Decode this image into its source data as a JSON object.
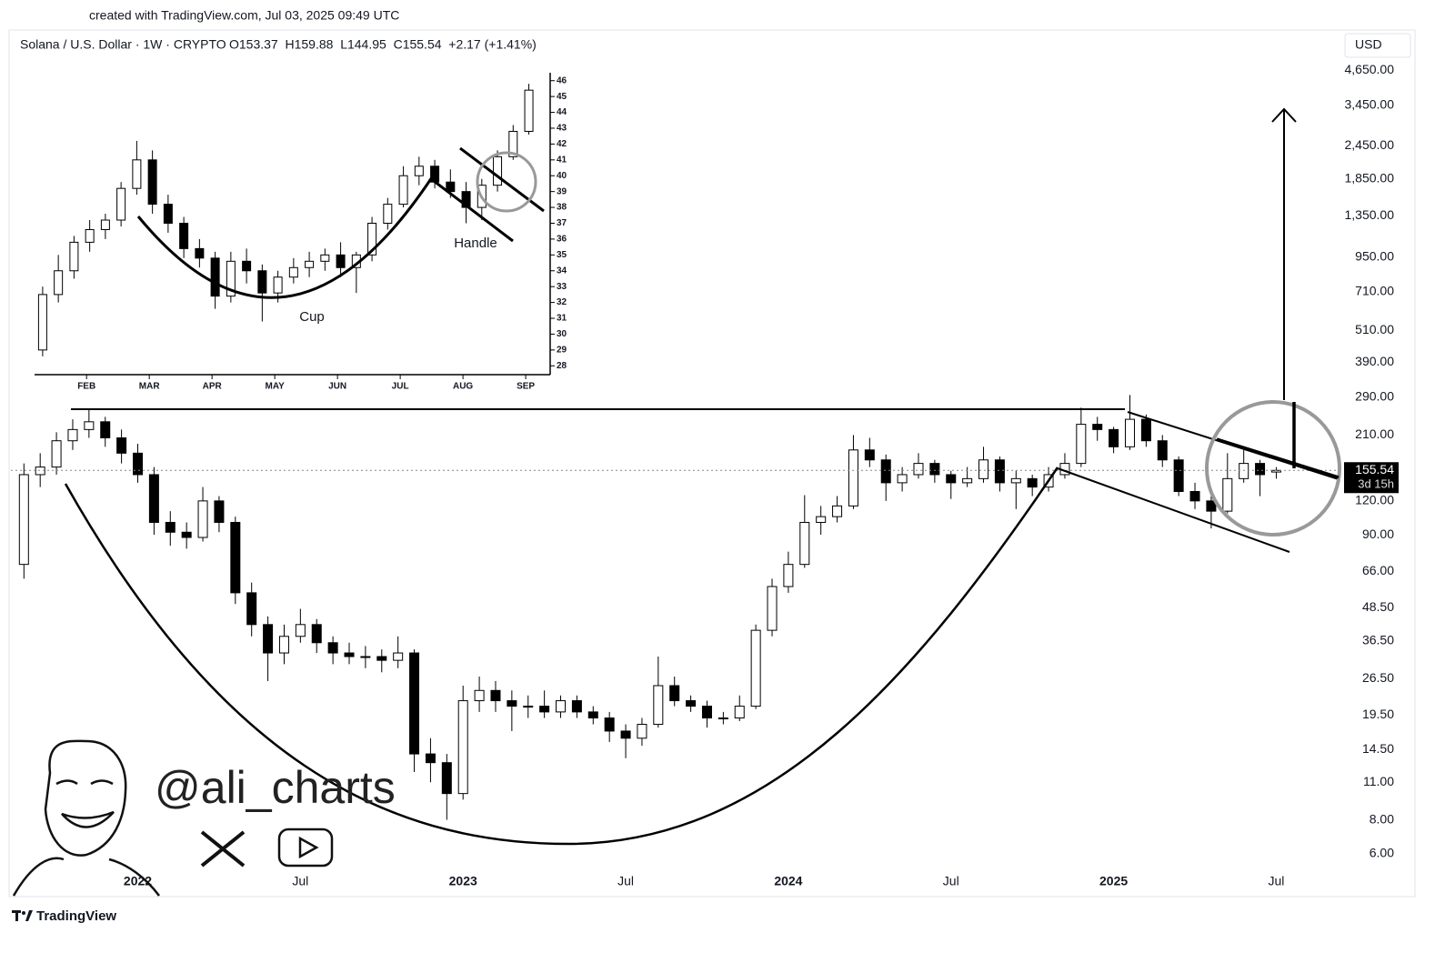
{
  "header": {
    "created": "created with TradingView.com, Jul 03, 2025 09:49 UTC",
    "symbol": "Solana / U.S. Dollar · 1W · CRYPTO",
    "ohlc": "O153.37  H159.88  L144.95  C155.54  +2.17 (+1.41%)",
    "currency": "USD"
  },
  "watermark": "@ali_charts",
  "footer": "TradingView",
  "chart_data": [
    {
      "type": "candlestick",
      "log_scale": true,
      "up_color": "#ffffff",
      "down_color": "#000000",
      "x": [
        2021.65,
        2021.7,
        2021.75,
        2021.8,
        2021.85,
        2021.9,
        2021.95,
        2022.0,
        2022.05,
        2022.1,
        2022.15,
        2022.2,
        2022.25,
        2022.3,
        2022.35,
        2022.4,
        2022.45,
        2022.5,
        2022.55,
        2022.6,
        2022.65,
        2022.7,
        2022.75,
        2022.8,
        2022.85,
        2022.9,
        2022.95,
        2023.0,
        2023.05,
        2023.1,
        2023.15,
        2023.2,
        2023.25,
        2023.3,
        2023.35,
        2023.4,
        2023.45,
        2023.5,
        2023.55,
        2023.6,
        2023.65,
        2023.7,
        2023.75,
        2023.8,
        2023.85,
        2023.9,
        2023.95,
        2024.0,
        2024.05,
        2024.1,
        2024.15,
        2024.2,
        2024.25,
        2024.3,
        2024.35,
        2024.4,
        2024.45,
        2024.5,
        2024.55,
        2024.6,
        2024.65,
        2024.7,
        2024.75,
        2024.8,
        2024.85,
        2024.9,
        2024.95,
        2025.0,
        2025.05,
        2025.1,
        2025.15,
        2025.2,
        2025.25,
        2025.3,
        2025.35,
        2025.4,
        2025.45,
        2025.5
      ],
      "open": [
        70,
        150,
        160,
        200,
        220,
        235,
        205,
        180,
        150,
        100,
        92,
        88,
        120,
        100,
        55,
        42,
        33,
        38,
        42,
        36,
        33,
        32,
        32,
        31,
        33,
        14,
        13,
        10,
        22,
        24,
        22,
        21,
        21,
        20,
        22,
        20,
        19,
        17,
        16,
        18,
        25,
        22,
        21,
        19,
        19,
        21,
        40,
        58,
        70,
        100,
        105,
        115,
        185,
        170,
        140,
        150,
        165,
        150,
        140,
        145,
        170,
        140,
        145,
        135,
        150,
        165,
        230,
        220,
        190,
        240,
        200,
        170,
        130,
        120,
        110,
        145,
        165,
        153.37
      ],
      "high": [
        165,
        180,
        215,
        240,
        260,
        245,
        220,
        195,
        160,
        110,
        100,
        135,
        125,
        105,
        60,
        45,
        42,
        48,
        44,
        38,
        36,
        35,
        34,
        38,
        34,
        16,
        14,
        25,
        27,
        26,
        24,
        23,
        24,
        23,
        23,
        21,
        20,
        18,
        19,
        32,
        27,
        23,
        22,
        20,
        23,
        42,
        62,
        78,
        126,
        115,
        125,
        210,
        205,
        178,
        160,
        180,
        170,
        155,
        160,
        190,
        175,
        155,
        150,
        160,
        180,
        265,
        245,
        225,
        295,
        250,
        210,
        175,
        140,
        125,
        180,
        185,
        170,
        159.88
      ],
      "low": [
        62,
        135,
        150,
        185,
        205,
        190,
        165,
        140,
        90,
        82,
        80,
        85,
        92,
        50,
        38,
        26,
        30,
        36,
        33,
        30,
        30,
        29,
        28,
        29,
        12,
        11,
        8,
        9.5,
        20,
        20,
        17,
        19,
        19,
        19,
        19,
        18,
        15.5,
        13.5,
        15,
        17.5,
        21,
        20,
        17.5,
        18,
        18.5,
        20.5,
        38,
        55,
        68,
        90,
        100,
        112,
        160,
        120,
        130,
        145,
        140,
        122,
        135,
        140,
        130,
        112,
        125,
        130,
        145,
        160,
        200,
        180,
        185,
        190,
        160,
        125,
        112,
        95,
        108,
        140,
        125,
        144.95
      ],
      "close": [
        150,
        160,
        200,
        220,
        235,
        205,
        180,
        150,
        100,
        92,
        88,
        120,
        100,
        55,
        42,
        33,
        38,
        42,
        36,
        33,
        32,
        32,
        31,
        33,
        14,
        13,
        10,
        22,
        24,
        22,
        21,
        21,
        20,
        22,
        20,
        19,
        17,
        16,
        18,
        25,
        22,
        21,
        19,
        19,
        21,
        40,
        58,
        70,
        100,
        105,
        115,
        185,
        170,
        140,
        150,
        165,
        150,
        140,
        145,
        170,
        140,
        145,
        135,
        150,
        165,
        230,
        220,
        190,
        240,
        200,
        170,
        130,
        120,
        110,
        145,
        165,
        150,
        155.54
      ],
      "xlim": [
        2021.61,
        2025.7
      ],
      "ylim": [
        4.2,
        6200
      ],
      "xticks": [
        {
          "value": 2022,
          "label": "2022"
        },
        {
          "value": 2022.5,
          "label": "Jul"
        },
        {
          "value": 2023,
          "label": "2023"
        },
        {
          "value": 2023.5,
          "label": "Jul"
        },
        {
          "value": 2024,
          "label": "2024"
        },
        {
          "value": 2024.5,
          "label": "Jul"
        },
        {
          "value": 2025,
          "label": "2025"
        },
        {
          "value": 2025.5,
          "label": "Jul"
        }
      ],
      "yticks": [
        {
          "value": 4650,
          "label": "4,650.00"
        },
        {
          "value": 3450,
          "label": "3,450.00"
        },
        {
          "value": 2450,
          "label": "2,450.00"
        },
        {
          "value": 1850,
          "label": "1,850.00"
        },
        {
          "value": 1350,
          "label": "1,350.00"
        },
        {
          "value": 950,
          "label": "950.00"
        },
        {
          "value": 710,
          "label": "710.00"
        },
        {
          "value": 510,
          "label": "510.00"
        },
        {
          "value": 390,
          "label": "390.00"
        },
        {
          "value": 290,
          "label": "290.00"
        },
        {
          "value": 210,
          "label": "210.00"
        },
        {
          "value": 120,
          "label": "120.00"
        },
        {
          "value": 90,
          "label": "90.00"
        },
        {
          "value": 66,
          "label": "66.00"
        },
        {
          "value": 48.5,
          "label": "48.50"
        },
        {
          "value": 36.5,
          "label": "36.50"
        },
        {
          "value": 26.5,
          "label": "26.50"
        },
        {
          "value": 19.5,
          "label": "19.50"
        },
        {
          "value": 14.5,
          "label": "14.50"
        },
        {
          "value": 11,
          "label": "11.00"
        },
        {
          "value": 8,
          "label": "8.00"
        },
        {
          "value": 6,
          "label": "6.00"
        }
      ],
      "last_price": 155.54,
      "countdown": "3d 15h"
    },
    {
      "type": "candlestick",
      "log_scale": false,
      "up_color": "#ffffff",
      "down_color": "#000000",
      "x": [
        1.3,
        1.55,
        1.8,
        2.05,
        2.3,
        2.55,
        2.8,
        3.05,
        3.3,
        3.55,
        3.8,
        4.05,
        4.3,
        4.55,
        4.8,
        5.05,
        5.3,
        5.55,
        5.8,
        6.05,
        6.3,
        6.55,
        6.8,
        7.05,
        7.3,
        7.55,
        7.8,
        8.05,
        8.3,
        8.55,
        8.8,
        9.05
      ],
      "open": [
        29,
        32.5,
        34,
        35.8,
        36.6,
        37.2,
        39.2,
        41,
        38.2,
        37,
        35.4,
        34.8,
        32.4,
        34.6,
        34,
        32.6,
        33.6,
        34.2,
        34.6,
        35,
        34.2,
        35,
        37,
        38.2,
        40,
        40.6,
        39.6,
        39,
        38,
        39.4,
        41.2,
        42.8
      ],
      "high": [
        33,
        35,
        36.2,
        37.2,
        37.6,
        39.6,
        42.2,
        41.6,
        38.8,
        37.4,
        36,
        35.2,
        35.2,
        35.4,
        34.4,
        34,
        34.8,
        35.2,
        35.4,
        35.8,
        35.2,
        37.4,
        38.6,
        40.6,
        41.2,
        41,
        40.4,
        39.6,
        39.8,
        41.6,
        43.2,
        45.8
      ],
      "low": [
        28.6,
        32,
        33.5,
        35.2,
        36,
        36.8,
        38.8,
        37.6,
        36.4,
        34.8,
        34.2,
        31.6,
        32,
        33.2,
        30.8,
        32,
        33.2,
        33.6,
        34,
        33.6,
        32.6,
        34.6,
        36.6,
        38,
        39.4,
        39.2,
        38.6,
        37,
        37.2,
        39,
        41,
        42.6
      ],
      "close": [
        32.5,
        34,
        35.8,
        36.6,
        37.2,
        39.2,
        41,
        38.2,
        37,
        35.4,
        34.8,
        32.4,
        34.6,
        34,
        32.6,
        33.6,
        34.2,
        34.6,
        35,
        34.2,
        35,
        37,
        38.2,
        40,
        40.6,
        39.6,
        39,
        38,
        39.4,
        41.2,
        42.8,
        45.4
      ],
      "xlim": [
        1.2,
        9.39
      ],
      "ylim": [
        27.5,
        46.5
      ],
      "xticks": [
        {
          "value": 2,
          "label": "FEB"
        },
        {
          "value": 3,
          "label": "MAR"
        },
        {
          "value": 4,
          "label": "APR"
        },
        {
          "value": 5,
          "label": "MAY"
        },
        {
          "value": 6,
          "label": "JUN"
        },
        {
          "value": 7,
          "label": "JUL"
        },
        {
          "value": 8,
          "label": "AUG"
        },
        {
          "value": 9,
          "label": "SEP"
        }
      ],
      "yticks": [
        28,
        29,
        30,
        31,
        32,
        33,
        34,
        35,
        36,
        37,
        38,
        39,
        40,
        41,
        42,
        43,
        44,
        45,
        46
      ],
      "annotations": [
        "Cup",
        "Handle"
      ]
    }
  ]
}
